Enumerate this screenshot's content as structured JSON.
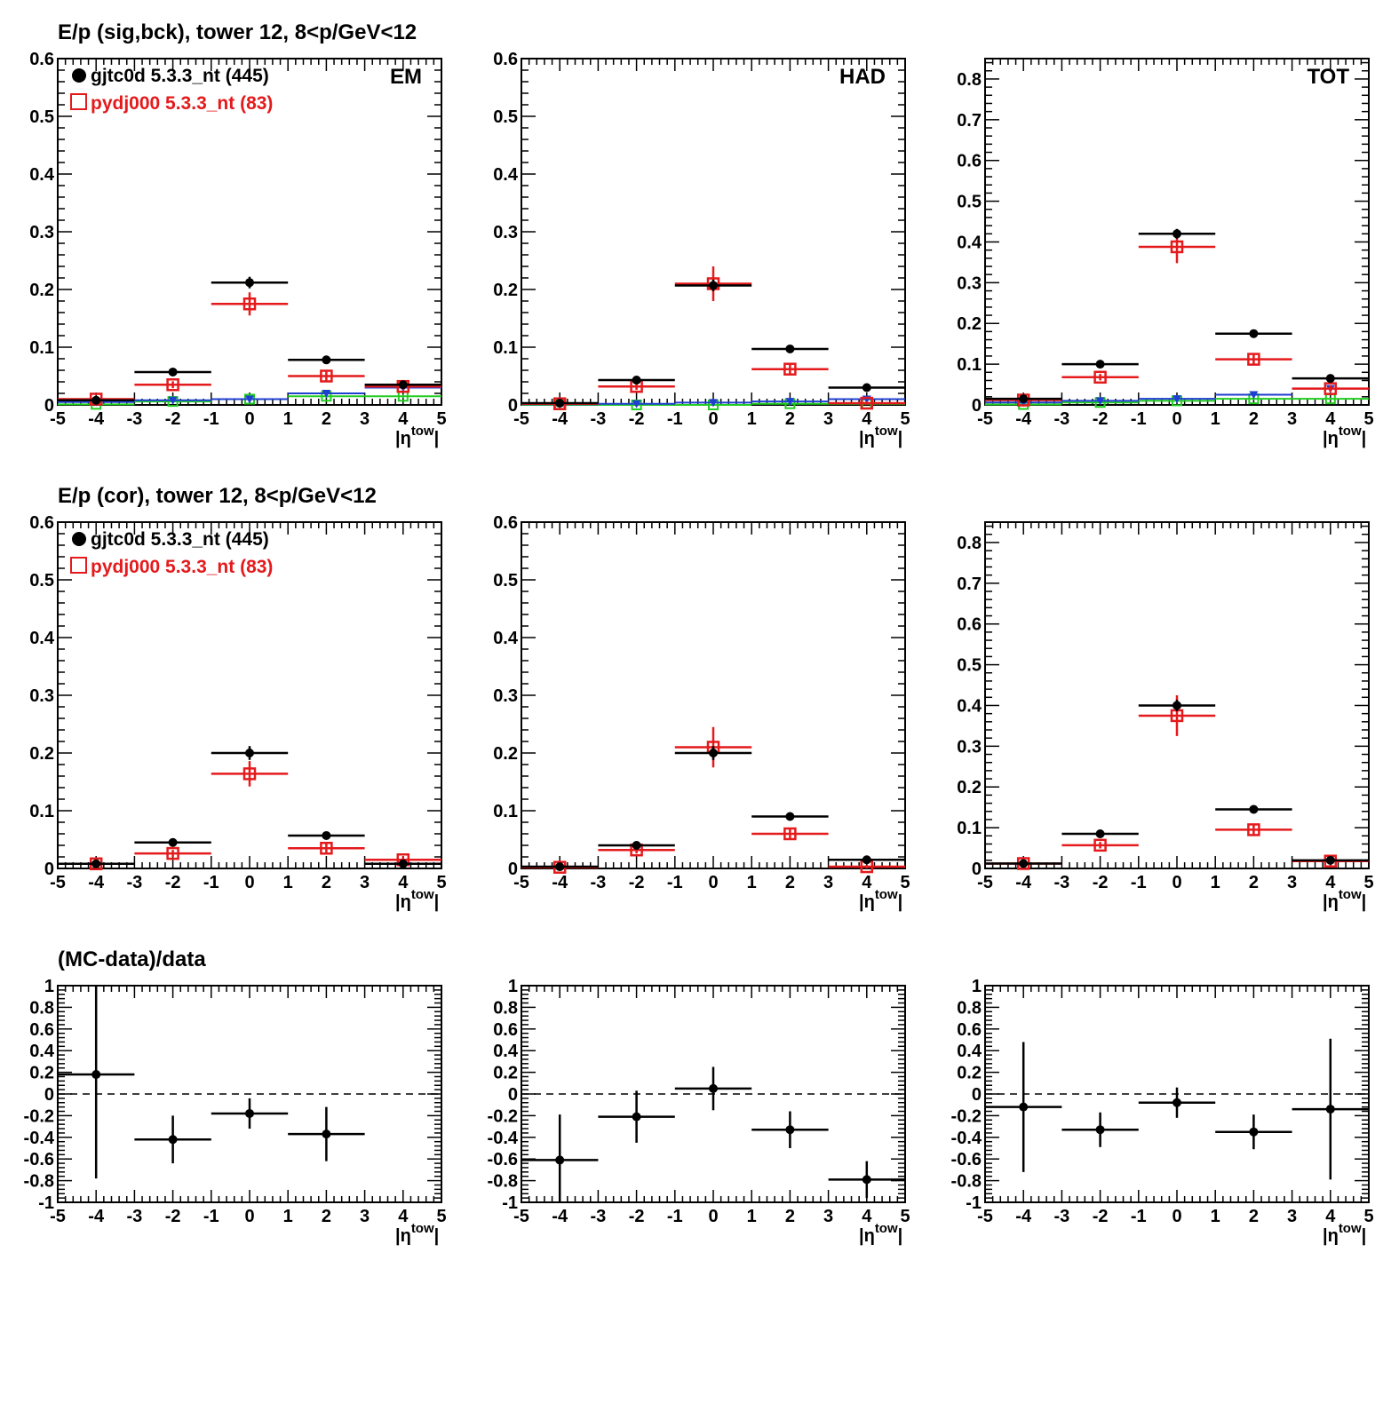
{
  "page": {
    "row_titles": [
      "E/p (sig,bck), tower 12,  8<p/GeV<12",
      "E/p (cor), tower 12,  8<p/GeV<12",
      "(MC-data)/data"
    ],
    "legend": [
      {
        "label": "gjtc0d 5.3.3_nt (445)",
        "color": "#000000",
        "marker": "filled-circle"
      },
      {
        "label": "pydj000 5.3.3_nt (83)",
        "color": "#e41a1c",
        "marker": "open-square"
      }
    ],
    "xaxis_label": "|η",
    "xaxis_label_sup": "tow",
    "xaxis_label_end": "|",
    "colors": {
      "data": "#000000",
      "mc": "#e41a1c",
      "blue": "#1f3fd0",
      "green": "#22cc22"
    }
  },
  "chart_data": [
    {
      "type": "scatter",
      "row": 0,
      "col": 0,
      "panel_label": "EM",
      "xlim": [
        -5,
        5
      ],
      "ylim": [
        0,
        0.6
      ],
      "ytick_step": 0.1,
      "yticks_labels": [
        "0",
        "0.1",
        "0.2",
        "0.3",
        "0.4",
        "0.5",
        "0.6"
      ],
      "xticks_labels": [
        "-5",
        "-4",
        "-3",
        "-2",
        "-1",
        "0",
        "1",
        "2",
        "3",
        "4",
        "5"
      ],
      "series": [
        {
          "name": "gjtc0d 5.3.3_nt (445)",
          "color": "black",
          "marker": "dot",
          "x": [
            -4,
            -2,
            0,
            2,
            4
          ],
          "xerr": 1,
          "y": [
            0.008,
            0.057,
            0.212,
            0.078,
            0.035
          ],
          "yerr": [
            0.003,
            0.004,
            0.01,
            0.006,
            0.004
          ]
        },
        {
          "name": "pydj000 5.3.3_nt (83)",
          "color": "red",
          "marker": "square",
          "x": [
            -4,
            -2,
            0,
            2,
            4
          ],
          "xerr": 1,
          "y": [
            0.01,
            0.035,
            0.175,
            0.05,
            0.032
          ],
          "yerr": [
            0.003,
            0.006,
            0.02,
            0.008,
            0.006
          ]
        },
        {
          "color": "blue",
          "marker": "tri",
          "x": [
            -4,
            -2,
            0,
            2,
            4
          ],
          "xerr": 1,
          "y": [
            0.005,
            0.008,
            0.01,
            0.02,
            0.03
          ],
          "yerr": [
            0.002,
            0.002,
            0.003,
            0.003,
            0.004
          ]
        },
        {
          "color": "green",
          "marker": "square-small",
          "x": [
            -4,
            -2,
            0,
            2,
            4
          ],
          "xerr": 1,
          "y": [
            0.001,
            0.006,
            0.01,
            0.015,
            0.015
          ],
          "yerr": [
            0.002,
            0.002,
            0.003,
            0.003,
            0.003
          ]
        }
      ]
    },
    {
      "type": "scatter",
      "row": 0,
      "col": 1,
      "panel_label": "HAD",
      "xlim": [
        -5,
        5
      ],
      "ylim": [
        0,
        0.6
      ],
      "ytick_step": 0.1,
      "yticks_labels": [
        "0",
        "0.1",
        "0.2",
        "0.3",
        "0.4",
        "0.5",
        "0.6"
      ],
      "xticks_labels": [
        "-5",
        "-4",
        "-3",
        "-2",
        "-1",
        "0",
        "1",
        "2",
        "3",
        "4",
        "5"
      ],
      "series": [
        {
          "color": "black",
          "marker": "dot",
          "x": [
            -4,
            -2,
            0,
            2,
            4
          ],
          "xerr": 1,
          "y": [
            0.003,
            0.043,
            0.207,
            0.097,
            0.03
          ],
          "yerr": [
            0.002,
            0.004,
            0.01,
            0.005,
            0.004
          ]
        },
        {
          "color": "red",
          "marker": "square",
          "x": [
            -4,
            -2,
            0,
            2,
            4
          ],
          "xerr": 1,
          "y": [
            0.002,
            0.032,
            0.21,
            0.062,
            0.003
          ],
          "yerr": [
            0.002,
            0.006,
            0.03,
            0.008,
            0.003
          ]
        },
        {
          "color": "blue",
          "marker": "tri",
          "x": [
            -4,
            -2,
            0,
            2,
            4
          ],
          "xerr": 1,
          "y": [
            0.001,
            0.002,
            0.004,
            0.006,
            0.01
          ],
          "yerr": [
            0.001,
            0.002,
            0.002,
            0.002,
            0.003
          ]
        },
        {
          "color": "green",
          "marker": "square-small",
          "x": [
            -4,
            -2,
            0,
            2,
            4
          ],
          "xerr": 1,
          "y": [
            0.0,
            0.0,
            0.0,
            0.002,
            0.002
          ],
          "yerr": [
            0.001,
            0.001,
            0.001,
            0.001,
            0.001
          ]
        }
      ]
    },
    {
      "type": "scatter",
      "row": 0,
      "col": 2,
      "panel_label": "TOT",
      "xlim": [
        -5,
        5
      ],
      "ylim": [
        0,
        0.85
      ],
      "ytick_step": 0.1,
      "yticks_labels": [
        "0",
        "0.1",
        "0.2",
        "0.3",
        "0.4",
        "0.5",
        "0.6",
        "0.7",
        "0.8"
      ],
      "xticks_labels": [
        "-5",
        "-4",
        "-3",
        "-2",
        "-1",
        "0",
        "1",
        "2",
        "3",
        "4",
        "5"
      ],
      "series": [
        {
          "color": "black",
          "marker": "dot",
          "x": [
            -4,
            -2,
            0,
            2,
            4
          ],
          "xerr": 1,
          "y": [
            0.015,
            0.1,
            0.42,
            0.175,
            0.065
          ],
          "yerr": [
            0.004,
            0.005,
            0.012,
            0.008,
            0.005
          ]
        },
        {
          "color": "red",
          "marker": "square",
          "x": [
            -4,
            -2,
            0,
            2,
            4
          ],
          "xerr": 1,
          "y": [
            0.012,
            0.068,
            0.388,
            0.112,
            0.04
          ],
          "yerr": [
            0.004,
            0.008,
            0.04,
            0.012,
            0.008
          ]
        },
        {
          "color": "blue",
          "marker": "tri",
          "x": [
            -4,
            -2,
            0,
            2,
            4
          ],
          "xerr": 1,
          "y": [
            0.006,
            0.01,
            0.015,
            0.025,
            0.04
          ],
          "yerr": [
            0.002,
            0.003,
            0.003,
            0.004,
            0.005
          ]
        },
        {
          "color": "green",
          "marker": "square-small",
          "x": [
            -4,
            -2,
            0,
            2,
            4
          ],
          "xerr": 1,
          "y": [
            0.001,
            0.006,
            0.01,
            0.015,
            0.015
          ],
          "yerr": [
            0.002,
            0.002,
            0.003,
            0.003,
            0.003
          ]
        }
      ]
    },
    {
      "type": "scatter",
      "row": 1,
      "col": 0,
      "xlim": [
        -5,
        5
      ],
      "ylim": [
        0,
        0.6
      ],
      "ytick_step": 0.1,
      "yticks_labels": [
        "0",
        "0.1",
        "0.2",
        "0.3",
        "0.4",
        "0.5",
        "0.6"
      ],
      "xticks_labels": [
        "-5",
        "-4",
        "-3",
        "-2",
        "-1",
        "0",
        "1",
        "2",
        "3",
        "4",
        "5"
      ],
      "series": [
        {
          "name": "gjtc0d 5.3.3_nt (445)",
          "color": "black",
          "marker": "dot",
          "x": [
            -4,
            -2,
            0,
            2,
            4
          ],
          "xerr": 1,
          "y": [
            0.008,
            0.045,
            0.2,
            0.057,
            0.008
          ],
          "yerr": [
            0.003,
            0.004,
            0.012,
            0.006,
            0.003
          ]
        },
        {
          "name": "pydj000 5.3.3_nt (83)",
          "color": "red",
          "marker": "square",
          "x": [
            -4,
            -2,
            0,
            2,
            4
          ],
          "xerr": 1,
          "y": [
            0.008,
            0.026,
            0.164,
            0.035,
            0.015
          ],
          "yerr": [
            0.003,
            0.006,
            0.022,
            0.008,
            0.006
          ]
        }
      ]
    },
    {
      "type": "scatter",
      "row": 1,
      "col": 1,
      "xlim": [
        -5,
        5
      ],
      "ylim": [
        0,
        0.6
      ],
      "ytick_step": 0.1,
      "yticks_labels": [
        "0",
        "0.1",
        "0.2",
        "0.3",
        "0.4",
        "0.5",
        "0.6"
      ],
      "xticks_labels": [
        "-5",
        "-4",
        "-3",
        "-2",
        "-1",
        "0",
        "1",
        "2",
        "3",
        "4",
        "5"
      ],
      "series": [
        {
          "color": "black",
          "marker": "dot",
          "x": [
            -4,
            -2,
            0,
            2,
            4
          ],
          "xerr": 1,
          "y": [
            0.003,
            0.04,
            0.2,
            0.09,
            0.015
          ],
          "yerr": [
            0.002,
            0.004,
            0.012,
            0.005,
            0.004
          ]
        },
        {
          "color": "red",
          "marker": "square",
          "x": [
            -4,
            -2,
            0,
            2,
            4
          ],
          "xerr": 1,
          "y": [
            0.002,
            0.032,
            0.21,
            0.06,
            0.003
          ],
          "yerr": [
            0.002,
            0.006,
            0.035,
            0.008,
            0.003
          ]
        }
      ]
    },
    {
      "type": "scatter",
      "row": 1,
      "col": 2,
      "xlim": [
        -5,
        5
      ],
      "ylim": [
        0,
        0.85
      ],
      "ytick_step": 0.1,
      "yticks_labels": [
        "0",
        "0.1",
        "0.2",
        "0.3",
        "0.4",
        "0.5",
        "0.6",
        "0.7",
        "0.8"
      ],
      "xticks_labels": [
        "-5",
        "-4",
        "-3",
        "-2",
        "-1",
        "0",
        "1",
        "2",
        "3",
        "4",
        "5"
      ],
      "series": [
        {
          "color": "black",
          "marker": "dot",
          "x": [
            -4,
            -2,
            0,
            2,
            4
          ],
          "xerr": 1,
          "y": [
            0.012,
            0.085,
            0.4,
            0.145,
            0.02
          ],
          "yerr": [
            0.004,
            0.005,
            0.014,
            0.01,
            0.004
          ]
        },
        {
          "color": "red",
          "marker": "square",
          "x": [
            -4,
            -2,
            0,
            2,
            4
          ],
          "xerr": 1,
          "y": [
            0.012,
            0.057,
            0.375,
            0.095,
            0.018
          ],
          "yerr": [
            0.004,
            0.008,
            0.05,
            0.012,
            0.006
          ]
        }
      ]
    },
    {
      "type": "scatter",
      "row": 2,
      "col": 0,
      "xlim": [
        -5,
        5
      ],
      "ylim": [
        -1,
        1
      ],
      "ytick_step": 0.2,
      "yticks_labels": [
        "-1",
        "-0.8",
        "-0.6",
        "-0.4",
        "-0.2",
        "0",
        "0.2",
        "0.4",
        "0.6",
        "0.8",
        "1"
      ],
      "xticks_labels": [
        "-5",
        "-4",
        "-3",
        "-2",
        "-1",
        "0",
        "1",
        "2",
        "3",
        "4",
        "5"
      ],
      "reference_line": 0,
      "series": [
        {
          "color": "black",
          "marker": "dot",
          "x": [
            -4,
            -2,
            0,
            2
          ],
          "xerr": 1,
          "y": [
            0.18,
            -0.42,
            -0.18,
            -0.37
          ],
          "yerr": [
            0.96,
            0.22,
            0.14,
            0.25
          ]
        }
      ]
    },
    {
      "type": "scatter",
      "row": 2,
      "col": 1,
      "xlim": [
        -5,
        5
      ],
      "ylim": [
        -1,
        1
      ],
      "ytick_step": 0.2,
      "yticks_labels": [
        "-1",
        "-0.8",
        "-0.6",
        "-0.4",
        "-0.2",
        "0",
        "0.2",
        "0.4",
        "0.6",
        "0.8",
        "1"
      ],
      "xticks_labels": [
        "-5",
        "-4",
        "-3",
        "-2",
        "-1",
        "0",
        "1",
        "2",
        "3",
        "4",
        "5"
      ],
      "reference_line": 0,
      "series": [
        {
          "color": "black",
          "marker": "dot",
          "x": [
            -4,
            -2,
            0,
            2,
            4
          ],
          "xerr": 1,
          "y": [
            -0.61,
            -0.21,
            0.05,
            -0.33,
            -0.79
          ],
          "yerr": [
            0.42,
            0.24,
            0.2,
            0.17,
            0.17
          ]
        }
      ]
    },
    {
      "type": "scatter",
      "row": 2,
      "col": 2,
      "xlim": [
        -5,
        5
      ],
      "ylim": [
        -1,
        1
      ],
      "ytick_step": 0.2,
      "yticks_labels": [
        "-1",
        "-0.8",
        "-0.6",
        "-0.4",
        "-0.2",
        "0",
        "0.2",
        "0.4",
        "0.6",
        "0.8",
        "1"
      ],
      "xticks_labels": [
        "-5",
        "-4",
        "-3",
        "-2",
        "-1",
        "0",
        "1",
        "2",
        "3",
        "4",
        "5"
      ],
      "reference_line": 0,
      "series": [
        {
          "color": "black",
          "marker": "dot",
          "x": [
            -4,
            -2,
            0,
            2,
            4
          ],
          "xerr": 1,
          "y": [
            -0.12,
            -0.33,
            -0.08,
            -0.35,
            -0.14
          ],
          "yerr": [
            0.6,
            0.16,
            0.14,
            0.16,
            0.65
          ]
        }
      ]
    }
  ]
}
